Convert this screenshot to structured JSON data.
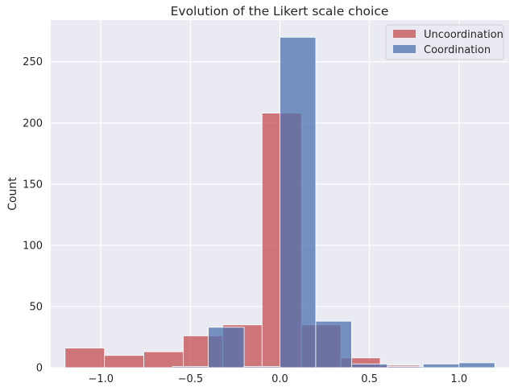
{
  "chart_data": {
    "type": "bar",
    "title": "Evolution of the Likert scale choice",
    "xlabel": "",
    "ylabel": "Count",
    "xlim": [
      -1.28,
      1.28
    ],
    "ylim": [
      0,
      284
    ],
    "xticks": [
      -1.0,
      -0.5,
      0.0,
      0.5,
      1.0
    ],
    "xtick_labels": [
      "−1.0",
      "−0.5",
      "0.0",
      "0.5",
      "1.0"
    ],
    "yticks": [
      0,
      50,
      100,
      150,
      200,
      250
    ],
    "ytick_labels": [
      "0",
      "50",
      "100",
      "150",
      "200",
      "250"
    ],
    "grid": true,
    "legend_position": "top-right",
    "series": [
      {
        "name": "Uncoordination",
        "color": "#c44e52",
        "bins": [
          {
            "x0": -1.2,
            "x1": -0.98,
            "count": 16
          },
          {
            "x0": -0.98,
            "x1": -0.76,
            "count": 10
          },
          {
            "x0": -0.76,
            "x1": -0.54,
            "count": 13
          },
          {
            "x0": -0.54,
            "x1": -0.32,
            "count": 26
          },
          {
            "x0": -0.32,
            "x1": -0.1,
            "count": 35
          },
          {
            "x0": -0.1,
            "x1": 0.12,
            "count": 208
          },
          {
            "x0": 0.12,
            "x1": 0.34,
            "count": 35
          },
          {
            "x0": 0.34,
            "x1": 0.56,
            "count": 8
          },
          {
            "x0": 0.56,
            "x1": 0.78,
            "count": 2
          },
          {
            "x0": 0.78,
            "x1": 1.0,
            "count": 0
          }
        ]
      },
      {
        "name": "Coordination",
        "color": "#4c72b0",
        "bins": [
          {
            "x0": -1.2,
            "x1": -1.0,
            "count": 0
          },
          {
            "x0": -1.0,
            "x1": -0.8,
            "count": 0
          },
          {
            "x0": -0.8,
            "x1": -0.6,
            "count": 0
          },
          {
            "x0": -0.6,
            "x1": -0.4,
            "count": 1
          },
          {
            "x0": -0.4,
            "x1": -0.2,
            "count": 33
          },
          {
            "x0": -0.2,
            "x1": 0.0,
            "count": 1
          },
          {
            "x0": 0.0,
            "x1": 0.2,
            "count": 270
          },
          {
            "x0": 0.2,
            "x1": 0.4,
            "count": 38
          },
          {
            "x0": 0.4,
            "x1": 0.6,
            "count": 3
          },
          {
            "x0": 0.6,
            "x1": 0.8,
            "count": 1
          },
          {
            "x0": 0.8,
            "x1": 1.0,
            "count": 3
          },
          {
            "x0": 1.0,
            "x1": 1.2,
            "count": 4
          }
        ]
      }
    ]
  },
  "colors": {
    "plot_background": "#eaeaf2",
    "grid": "#ffffff"
  }
}
